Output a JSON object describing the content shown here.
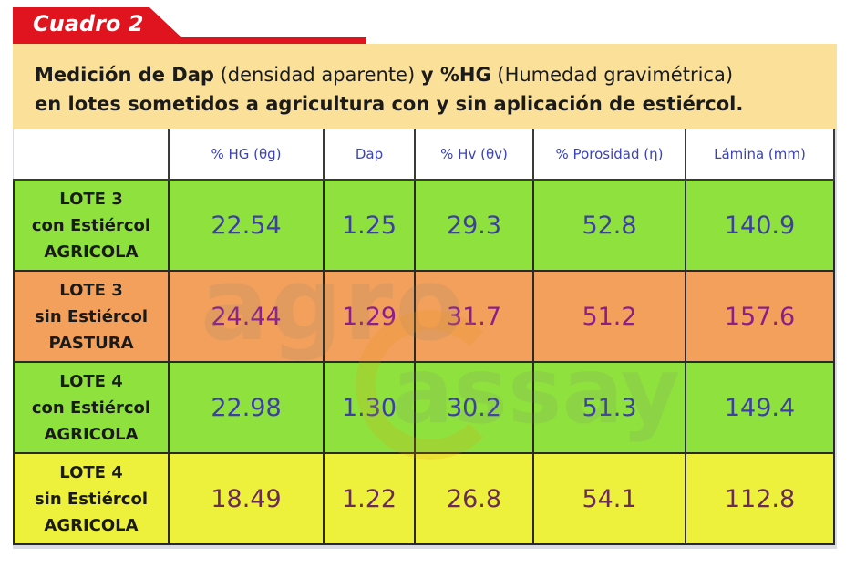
{
  "tag": {
    "label": "Cuadro 2"
  },
  "caption": {
    "line1": [
      {
        "text": "Medición de Dap",
        "bold": true
      },
      {
        "text": " (densidad aparente) ",
        "bold": false
      },
      {
        "text": "y %HG",
        "bold": true
      },
      {
        "text": " (Humedad gravimétrica)",
        "bold": false
      }
    ],
    "line2": "en lotes sometidos a agricultura con y sin aplicación de estiércol."
  },
  "table": {
    "headers": [
      "",
      "% HG (θg)",
      "Dap",
      "% Hv (θv)",
      "% Porosidad (η)",
      "Lámina (mm)"
    ],
    "rows": [
      {
        "label": [
          "LOTE 3",
          "con Estiércol",
          "AGRICOLA"
        ],
        "values": [
          "22.54",
          "1.25",
          "29.3",
          "52.8",
          "140.9"
        ],
        "color": "#8fe23d",
        "style": "green"
      },
      {
        "label": [
          "LOTE 3",
          "sin Estiércol",
          "PASTURA"
        ],
        "values": [
          "24.44",
          "1.29",
          "31.7",
          "51.2",
          "157.6"
        ],
        "color": "#f2a05b",
        "style": "orange"
      },
      {
        "label": [
          "LOTE 4",
          "con Estiércol",
          "AGRICOLA"
        ],
        "values": [
          "22.98",
          "1.30",
          "30.2",
          "51.3",
          "149.4"
        ],
        "color": "#8fe23d",
        "style": "green"
      },
      {
        "label": [
          "LOTE 4",
          "sin Estiércol",
          "AGRICOLA"
        ],
        "values": [
          "18.49",
          "1.22",
          "26.8",
          "54.1",
          "112.8"
        ],
        "color": "#eef13c",
        "style": "yellow"
      }
    ]
  },
  "watermark": {
    "word1": "agro",
    "word2": "assay"
  }
}
